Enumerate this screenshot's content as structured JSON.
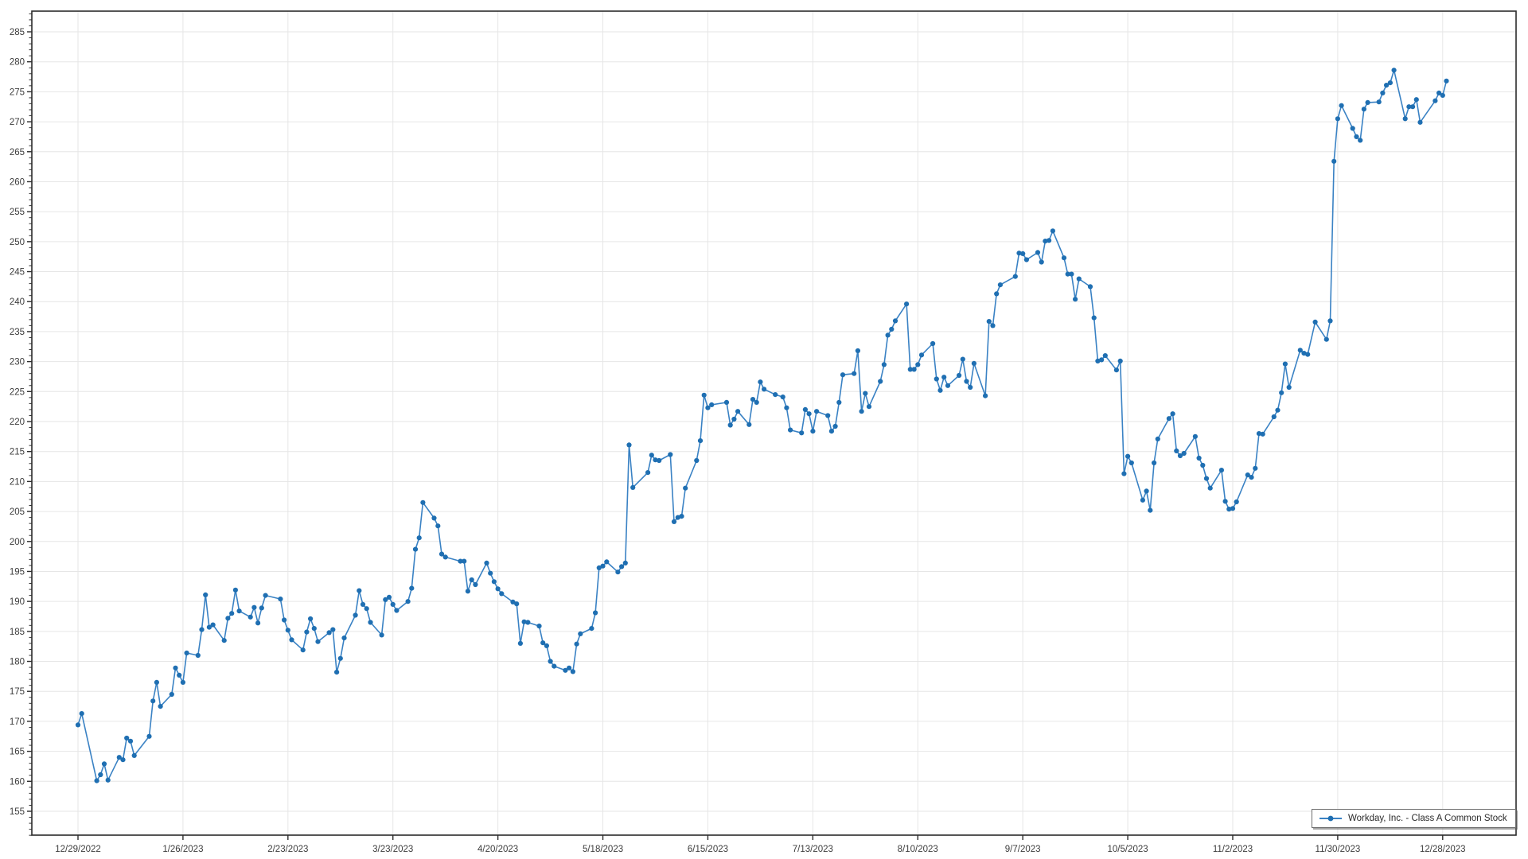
{
  "legend": {
    "label": "Workday, Inc. - Class A Common Stock"
  },
  "colors": {
    "line": "#3a82c4",
    "marker": "#1f6fb2",
    "grid": "#e6e6e6",
    "axis": "#2b2b2b",
    "tick_text": "#3c3c3c",
    "background": "#ffffff"
  },
  "chart_data": {
    "type": "line",
    "title": "",
    "xlabel": "",
    "ylabel": "",
    "series_name": "Workday, Inc. - Class A Common Stock",
    "legend_position": "bottom-right",
    "grid": true,
    "markers": true,
    "x_axis_kind": "date-trading-days",
    "start_date": "2022-12-29",
    "end_date": "2023-12-29",
    "market_holidays": [
      "2023-01-02",
      "2023-01-16",
      "2023-02-20",
      "2023-04-07",
      "2023-05-29",
      "2023-06-19",
      "2023-07-04",
      "2023-09-04",
      "2023-11-23",
      "2023-12-25"
    ],
    "x_tick_interval_days": 28,
    "x_tick_labels": [
      "12/29/2022",
      "1/26/2023",
      "2/23/2023",
      "3/23/2023",
      "4/20/2023",
      "5/18/2023",
      "6/15/2023",
      "7/13/2023",
      "8/10/2023",
      "9/7/2023",
      "10/5/2023",
      "11/2/2023",
      "11/30/2023",
      "12/28/2023"
    ],
    "y_tick_labels": [
      "155",
      "160",
      "165",
      "170",
      "175",
      "180",
      "185",
      "190",
      "195",
      "200",
      "205",
      "210",
      "215",
      "220",
      "225",
      "230",
      "235",
      "240",
      "245",
      "250",
      "255",
      "260",
      "265",
      "270",
      "275",
      "280",
      "285"
    ],
    "ylim": [
      151.0,
      288.5
    ],
    "y_major_step": 5,
    "y_minor_step": 1,
    "values": [
      169.4,
      171.3,
      160.1,
      161.1,
      162.9,
      160.2,
      164.0,
      163.6,
      167.2,
      166.7,
      164.3,
      167.5,
      173.4,
      176.5,
      172.5,
      174.5,
      178.9,
      177.7,
      176.5,
      181.4,
      181.0,
      185.3,
      191.1,
      185.7,
      186.1,
      183.5,
      187.2,
      188.0,
      191.9,
      188.4,
      187.4,
      189.0,
      186.4,
      188.9,
      191.0,
      190.4,
      186.9,
      185.2,
      183.6,
      181.9,
      184.9,
      187.1,
      185.5,
      183.3,
      184.8,
      185.3,
      178.2,
      180.5,
      183.9,
      187.7,
      191.8,
      189.5,
      188.8,
      186.5,
      184.4,
      190.3,
      190.7,
      189.5,
      188.5,
      190.0,
      192.2,
      198.7,
      200.6,
      206.5,
      203.9,
      202.6,
      197.9,
      197.4,
      196.7,
      196.7,
      191.7,
      193.6,
      192.8,
      196.4,
      194.7,
      193.3,
      192.1,
      191.3,
      189.9,
      189.6,
      183.0,
      186.6,
      186.5,
      185.9,
      183.1,
      182.6,
      180.0,
      179.2,
      178.5,
      178.9,
      178.3,
      182.9,
      184.6,
      185.5,
      188.1,
      195.6,
      195.9,
      196.6,
      194.9,
      195.8,
      196.4,
      216.1,
      209.0,
      211.5,
      214.4,
      213.6,
      213.5,
      214.5,
      203.3,
      204.0,
      204.2,
      208.9,
      213.5,
      216.8,
      224.4,
      222.3,
      222.8,
      223.2,
      219.4,
      220.4,
      221.7,
      219.5,
      223.7,
      223.2,
      226.6,
      225.4,
      224.5,
      224.1,
      222.3,
      218.6,
      218.1,
      222.0,
      221.3,
      218.4,
      221.7,
      221.0,
      218.4,
      219.2,
      223.2,
      227.8,
      228.0,
      231.8,
      221.7,
      224.7,
      222.5,
      226.7,
      229.5,
      234.4,
      235.4,
      236.8,
      239.6,
      228.7,
      228.7,
      229.5,
      231.1,
      233.0,
      227.1,
      225.2,
      227.4,
      226.0,
      227.7,
      230.4,
      226.7,
      225.7,
      229.7,
      224.3,
      236.7,
      236.0,
      241.3,
      242.8,
      244.2,
      248.1,
      248.0,
      247.0,
      248.2,
      246.6,
      250.1,
      250.2,
      251.8,
      247.3,
      244.6,
      244.6,
      240.4,
      243.8,
      242.5,
      237.3,
      230.1,
      230.3,
      231.0,
      228.6,
      230.1,
      211.3,
      214.2,
      213.1,
      206.9,
      208.4,
      205.2,
      213.1,
      217.1,
      220.5,
      221.3,
      215.1,
      214.3,
      214.7,
      217.5,
      213.9,
      212.7,
      210.5,
      208.9,
      211.9,
      206.7,
      205.4,
      205.5,
      206.6,
      211.1,
      210.7,
      212.2,
      218.0,
      217.9,
      220.8,
      221.9,
      224.8,
      229.6,
      225.7,
      231.9,
      231.4,
      231.2,
      236.6,
      233.7,
      236.8,
      263.4,
      270.5,
      272.7,
      268.9,
      267.5,
      266.9,
      272.1,
      273.2,
      273.3,
      274.8,
      276.1,
      276.5,
      278.6,
      270.5,
      272.5,
      272.5,
      273.7,
      269.9,
      273.5,
      274.8,
      274.4,
      276.8
    ]
  }
}
